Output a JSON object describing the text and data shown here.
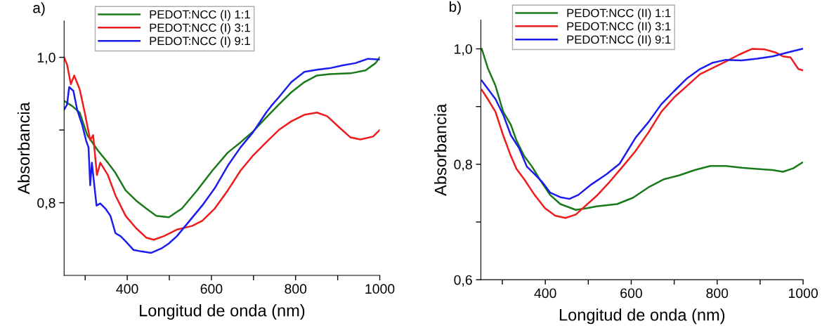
{
  "chart_data": [
    {
      "type": "line",
      "xlabel": "Longitud de onda (nm)",
      "ylabel": "Absorbancia",
      "annotations": [
        "a)"
      ],
      "legend": "top left",
      "grid": false,
      "xlim": [
        250,
        1000
      ],
      "xticks": [
        {
          "value": 300,
          "label": null
        },
        400,
        {
          "value": 500,
          "label": null
        },
        600,
        {
          "value": 700,
          "label": null
        },
        800,
        {
          "value": 900,
          "label": null
        },
        1000
      ],
      "ylim": [
        0.7,
        1.05
      ],
      "yticks": [
        {
          "value": 0.8,
          "label": "0,8"
        },
        {
          "value": 0.9,
          "label": null
        },
        {
          "value": 1.0,
          "label": "1,0"
        }
      ],
      "series": [
        {
          "name": "PEDOT:NCC (I) 1:1",
          "color": "#1a7a1a",
          "x": [
            250,
            269,
            287,
            305,
            330,
            354,
            372,
            396,
            421,
            445,
            469,
            499,
            530,
            566,
            602,
            639,
            669,
            699,
            730,
            760,
            790,
            821,
            851,
            881,
            930,
            966,
            990,
            1000
          ],
          "values": [
            0.94,
            0.933,
            0.924,
            0.893,
            0.872,
            0.855,
            0.841,
            0.817,
            0.803,
            0.792,
            0.782,
            0.78,
            0.792,
            0.817,
            0.844,
            0.869,
            0.883,
            0.898,
            0.917,
            0.935,
            0.952,
            0.966,
            0.975,
            0.977,
            0.978,
            0.982,
            0.992,
            1.0
          ]
        },
        {
          "name": "PEDOT:NCC (I) 3:1",
          "color": "#ee1c1c",
          "x": [
            250,
            257,
            266,
            274,
            287,
            299,
            312,
            319,
            328,
            336,
            354,
            372,
            396,
            421,
            445,
            463,
            487,
            518,
            554,
            578,
            608,
            639,
            669,
            699,
            730,
            760,
            790,
            821,
            851,
            875,
            905,
            930,
            954,
            984,
            1000
          ],
          "values": [
            1.0,
            0.99,
            0.963,
            0.975,
            0.956,
            0.924,
            0.886,
            0.893,
            0.838,
            0.855,
            0.838,
            0.81,
            0.782,
            0.765,
            0.752,
            0.749,
            0.754,
            0.763,
            0.768,
            0.775,
            0.792,
            0.817,
            0.844,
            0.865,
            0.883,
            0.9,
            0.912,
            0.921,
            0.924,
            0.919,
            0.903,
            0.89,
            0.887,
            0.891,
            0.9
          ]
        },
        {
          "name": "PEDOT:NCC (I) 9:1",
          "color": "#1c1cee",
          "x": [
            250,
            257,
            262,
            272,
            281,
            293,
            302,
            308,
            312,
            316,
            327,
            336,
            348,
            360,
            372,
            384,
            396,
            415,
            433,
            457,
            481,
            499,
            518,
            548,
            578,
            608,
            639,
            669,
            699,
            730,
            742,
            760,
            790,
            821,
            851,
            881,
            912,
            942,
            972,
            1000
          ],
          "values": [
            0.928,
            0.935,
            0.959,
            0.954,
            0.928,
            0.907,
            0.886,
            0.876,
            0.824,
            0.855,
            0.796,
            0.799,
            0.792,
            0.782,
            0.758,
            0.754,
            0.747,
            0.735,
            0.733,
            0.731,
            0.737,
            0.744,
            0.754,
            0.775,
            0.796,
            0.82,
            0.851,
            0.876,
            0.897,
            0.924,
            0.933,
            0.945,
            0.966,
            0.98,
            0.983,
            0.985,
            0.989,
            0.992,
            0.998,
            0.997
          ]
        }
      ]
    },
    {
      "type": "line",
      "xlabel": "Longitud de onda (nm)",
      "ylabel": "Absorbancia",
      "annotations": [
        "b)"
      ],
      "legend": "top left",
      "grid": false,
      "xlim": [
        250,
        1000
      ],
      "xticks": [
        {
          "value": 300,
          "label": null
        },
        400,
        {
          "value": 500,
          "label": null
        },
        600,
        {
          "value": 700,
          "label": null
        },
        800,
        {
          "value": 900,
          "label": null
        },
        1000
      ],
      "ylim": [
        0.6,
        1.05
      ],
      "yticks": [
        {
          "value": 0.6,
          "label": "0,6"
        },
        {
          "value": 0.7,
          "label": null
        },
        {
          "value": 0.8,
          "label": "0,8"
        },
        {
          "value": 0.9,
          "label": null
        },
        {
          "value": 1.0,
          "label": "1,0"
        }
      ],
      "series": [
        {
          "name": "PEDOT:NCC (II) 1:1",
          "color": "#1a7a1a",
          "x": [
            252,
            266,
            284,
            302,
            320,
            333,
            351,
            369,
            387,
            411,
            435,
            471,
            498,
            519,
            567,
            604,
            640,
            676,
            712,
            748,
            784,
            820,
            857,
            893,
            929,
            953,
            977,
            998
          ],
          "values": [
            1.0,
            0.967,
            0.936,
            0.891,
            0.868,
            0.841,
            0.814,
            0.796,
            0.774,
            0.747,
            0.731,
            0.721,
            0.724,
            0.727,
            0.731,
            0.742,
            0.76,
            0.774,
            0.781,
            0.79,
            0.797,
            0.797,
            0.794,
            0.792,
            0.79,
            0.787,
            0.793,
            0.803
          ]
        },
        {
          "name": "PEDOT:NCC (II) 3:1",
          "color": "#ee1c1c",
          "x": [
            252,
            266,
            284,
            302,
            320,
            333,
            351,
            375,
            399,
            423,
            447,
            471,
            495,
            519,
            549,
            580,
            610,
            640,
            670,
            700,
            730,
            760,
            790,
            820,
            851,
            881,
            911,
            935,
            953,
            971,
            989,
            998
          ],
          "values": [
            0.929,
            0.913,
            0.891,
            0.85,
            0.814,
            0.792,
            0.774,
            0.747,
            0.724,
            0.711,
            0.707,
            0.713,
            0.729,
            0.745,
            0.769,
            0.796,
            0.823,
            0.855,
            0.891,
            0.916,
            0.936,
            0.956,
            0.967,
            0.978,
            0.99,
            1.0,
            0.999,
            0.994,
            0.987,
            0.985,
            0.965,
            0.963
          ]
        },
        {
          "name": "PEDOT:NCC (II) 9:1",
          "color": "#1c1cee",
          "x": [
            252,
            266,
            284,
            302,
            320,
            339,
            357,
            375,
            393,
            411,
            435,
            456,
            477,
            507,
            543,
            573,
            610,
            640,
            670,
            700,
            730,
            760,
            790,
            820,
            857,
            893,
            929,
            965,
            998
          ],
          "values": [
            0.945,
            0.931,
            0.913,
            0.886,
            0.85,
            0.828,
            0.796,
            0.783,
            0.769,
            0.751,
            0.743,
            0.74,
            0.747,
            0.765,
            0.783,
            0.801,
            0.846,
            0.873,
            0.904,
            0.927,
            0.949,
            0.965,
            0.976,
            0.981,
            0.98,
            0.983,
            0.987,
            0.994,
            1.0
          ]
        }
      ]
    }
  ]
}
